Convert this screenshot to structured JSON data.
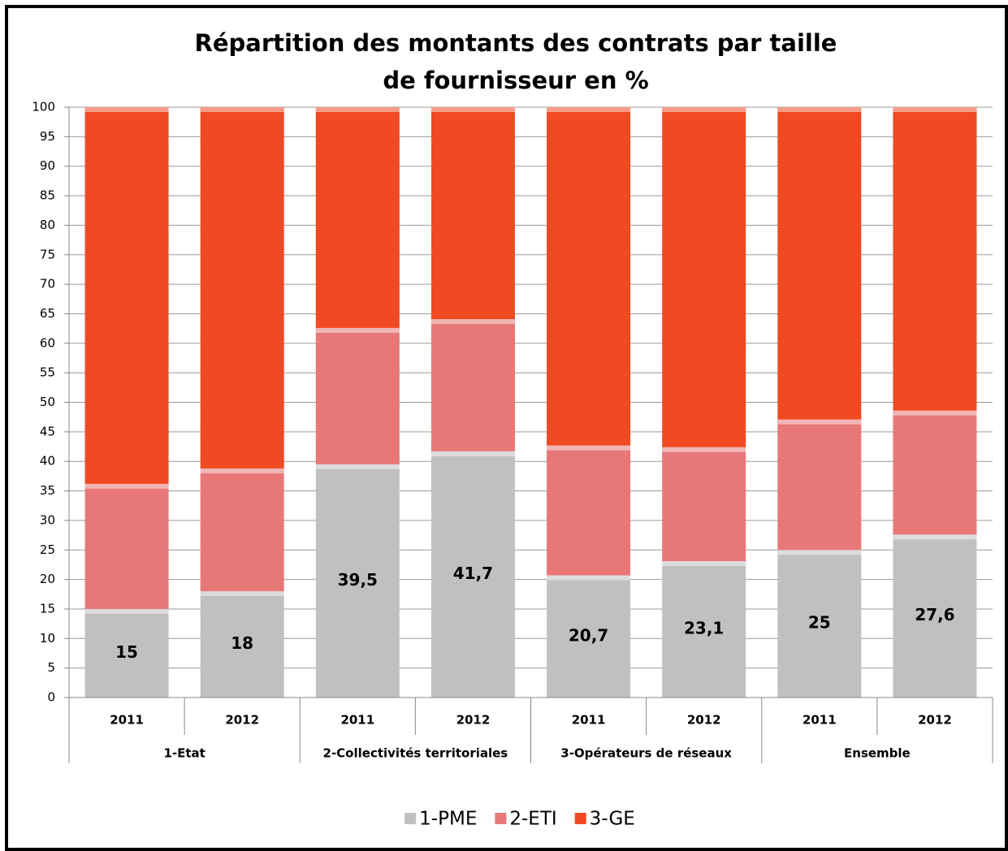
{
  "chart_data": {
    "type": "stacked_bar",
    "title": "Répartition des montants des contrats par taille de fournisseur en %",
    "categories": [
      "2011",
      "2012",
      "2011",
      "2012",
      "2011",
      "2012",
      "2011",
      "2012"
    ],
    "groups": [
      "1-Etat",
      "2-Collectivités territoriales",
      "3-Opérateurs de réseaux",
      "Ensemble"
    ],
    "series": [
      {
        "name": "1-PME",
        "color": "#c0c0c0",
        "values": [
          15,
          18,
          39.5,
          41.7,
          20.7,
          23.1,
          25,
          27.6
        ],
        "value_labels": [
          "15",
          "18",
          "39,5",
          "41,7",
          "20,7",
          "23,1",
          "25",
          "27,6"
        ]
      },
      {
        "name": "2-ETI",
        "color": "#e87878",
        "values": [
          21.2,
          20.8,
          23.1,
          22.4,
          22.0,
          19.3,
          22.1,
          21.0
        ]
      },
      {
        "name": "3-GE",
        "color": "#f04a23",
        "values": [
          63.8,
          61.2,
          37.4,
          35.9,
          57.3,
          57.6,
          52.9,
          51.4
        ]
      }
    ],
    "ylim": [
      0,
      100
    ],
    "yticks": [
      0,
      5,
      10,
      15,
      20,
      25,
      30,
      35,
      40,
      45,
      50,
      55,
      60,
      65,
      70,
      75,
      80,
      85,
      90,
      95,
      100
    ],
    "grid": true,
    "legend": "bottom"
  }
}
